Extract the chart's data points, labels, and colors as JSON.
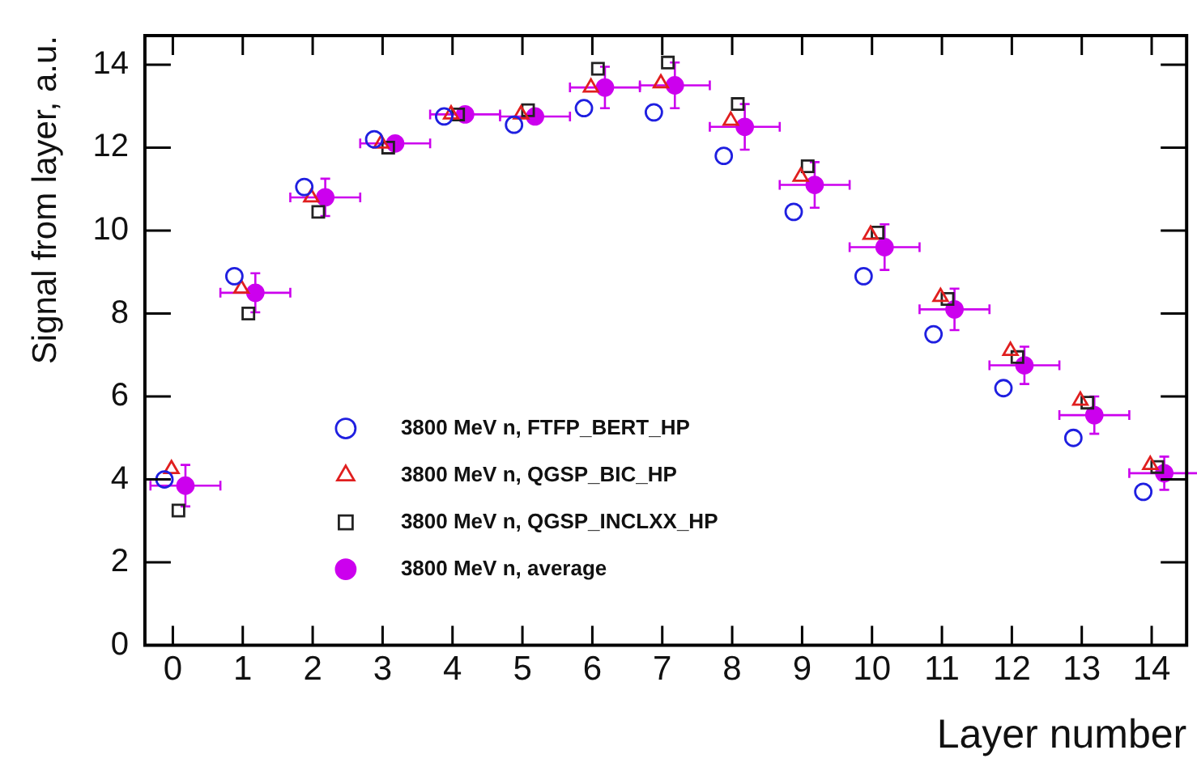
{
  "chart_data": {
    "type": "scatter",
    "xlabel": "Layer number",
    "ylabel": "Signal from layer, a.u.",
    "xlim": [
      -0.4,
      14.5
    ],
    "xticks": [
      0,
      1,
      2,
      3,
      4,
      5,
      6,
      7,
      8,
      9,
      10,
      11,
      12,
      13,
      14
    ],
    "ylim": [
      0,
      14.7
    ],
    "yticks": [
      0,
      2,
      4,
      6,
      8,
      10,
      12,
      14
    ],
    "grid": false,
    "legend": "bottom left",
    "series": [
      {
        "name": "3800 MeV n, FTFP_BERT_HP",
        "color": "#1f1fe0",
        "marker": "circle",
        "x": [
          -0.12,
          0.88,
          1.88,
          2.88,
          3.88,
          4.88,
          5.88,
          6.88,
          7.88,
          8.88,
          9.88,
          10.88,
          11.88,
          12.88,
          13.88
        ],
        "values": [
          4.0,
          8.9,
          11.05,
          12.2,
          12.75,
          12.55,
          12.95,
          12.85,
          11.8,
          10.45,
          8.9,
          7.5,
          6.2,
          5.0,
          3.7
        ]
      },
      {
        "name": "3800 MeV n, QGSP_BIC_HP",
        "color": "#e01f1f",
        "marker": "triangle",
        "x": [
          -0.02,
          0.98,
          1.98,
          2.98,
          3.98,
          4.98,
          5.98,
          6.98,
          7.98,
          8.98,
          9.98,
          10.98,
          11.98,
          12.98,
          13.98
        ],
        "values": [
          4.25,
          8.6,
          10.8,
          12.1,
          12.8,
          12.8,
          13.45,
          13.55,
          12.65,
          11.3,
          9.9,
          8.4,
          7.1,
          5.9,
          4.35
        ]
      },
      {
        "name": "3800 MeV n, QGSP_INCLXX_HP",
        "color": "#222222",
        "marker": "square",
        "x": [
          0.08,
          1.08,
          2.08,
          3.08,
          4.08,
          5.08,
          6.08,
          7.08,
          8.08,
          9.08,
          10.08,
          11.08,
          12.08,
          13.08,
          14.08
        ],
        "values": [
          3.25,
          8.0,
          10.45,
          12.0,
          12.8,
          12.9,
          13.9,
          14.05,
          13.05,
          11.55,
          9.95,
          8.35,
          6.95,
          5.85,
          4.3
        ]
      },
      {
        "name": "3800 MeV n, average",
        "color": "#cc00ee",
        "marker": "circle",
        "x": [
          0.18,
          1.18,
          2.18,
          3.18,
          4.18,
          5.18,
          6.18,
          7.18,
          8.18,
          9.18,
          10.18,
          11.18,
          12.18,
          13.18,
          14.18
        ],
        "values": [
          3.85,
          8.5,
          10.8,
          12.1,
          12.8,
          12.75,
          13.45,
          13.5,
          12.5,
          11.1,
          9.6,
          8.1,
          6.75,
          5.55,
          4.15
        ],
        "errors": [
          0.5,
          0.47,
          0.45,
          null,
          null,
          null,
          0.5,
          0.55,
          0.55,
          0.55,
          0.55,
          0.5,
          0.45,
          0.45,
          0.4
        ],
        "xerrors": [
          0.5,
          0.5,
          0.5,
          0.5,
          0.5,
          0.5,
          0.5,
          0.5,
          0.5,
          0.5,
          0.5,
          0.5,
          0.5,
          0.5,
          0.5
        ]
      }
    ]
  }
}
